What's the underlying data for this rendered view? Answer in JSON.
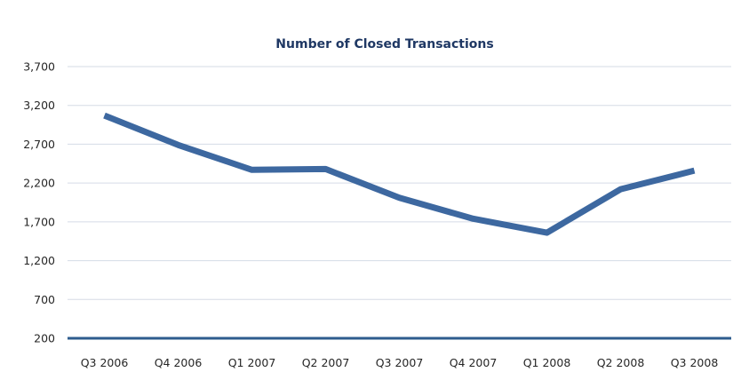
{
  "chart_data": {
    "type": "line",
    "title": "Number of Closed Transactions",
    "xlabel": "",
    "ylabel": "",
    "categories": [
      "Q3 2006",
      "Q4 2006",
      "Q1 2007",
      "Q2 2007",
      "Q3 2007",
      "Q4 2007",
      "Q1 2008",
      "Q2 2008",
      "Q3 2008"
    ],
    "series": [
      {
        "values": [
          3070,
          2690,
          2370,
          2380,
          2010,
          1740,
          1560,
          2120,
          2360
        ]
      }
    ],
    "ylim": [
      200,
      3700
    ],
    "yticks": [
      200,
      700,
      1200,
      1700,
      2200,
      2700,
      3200,
      3700
    ],
    "ytick_labels": [
      "200",
      "700",
      "1,200",
      "1,700",
      "2,200",
      "2,700",
      "3,200",
      "3,700"
    ],
    "grid": true,
    "legend": "none",
    "colors": {
      "series": "#3d68a0",
      "axis": "#2e5c8e",
      "grid": "#d5dbe6",
      "title": "#1f3864"
    }
  }
}
